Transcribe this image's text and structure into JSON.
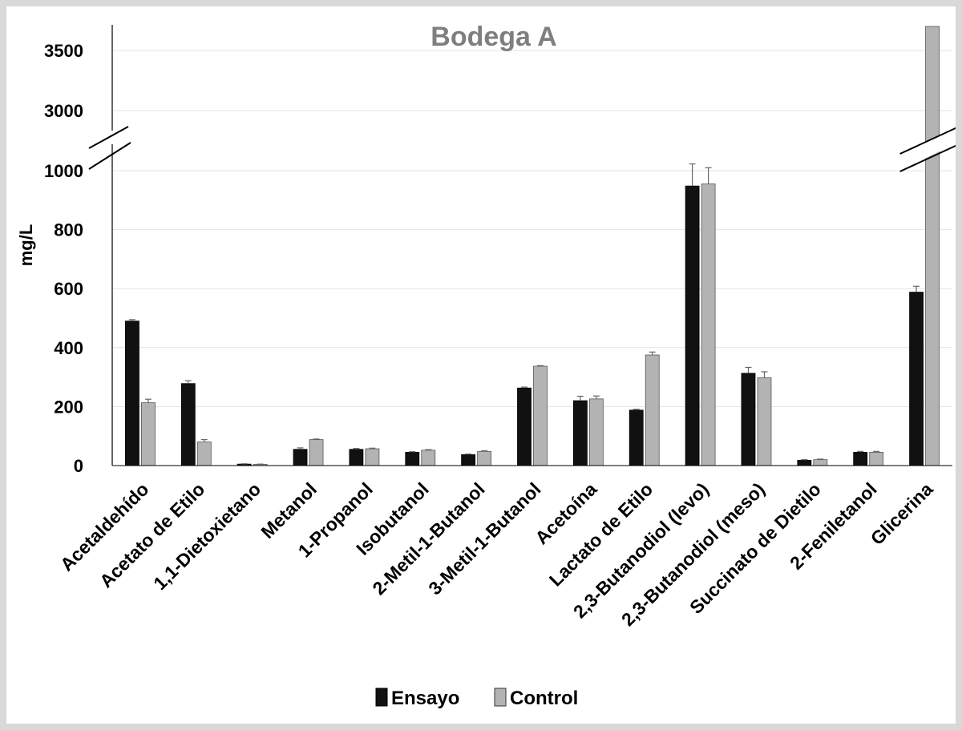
{
  "chart_data": {
    "type": "bar",
    "title": "Bodega A",
    "ylabel": "mg/L",
    "xlabel": "",
    "axis_break": {
      "lower_max": 1000,
      "upper_min": 2800,
      "upper_max": 3700
    },
    "yticks_lower": [
      0,
      200,
      400,
      600,
      800,
      1000
    ],
    "yticks_upper": [
      3000,
      3500
    ],
    "categories": [
      "Acetaldehído",
      "Acetato de Etilo",
      "1,1-Dietoxietano",
      "Metanol",
      "1-Propanol",
      "Isobutanol",
      "2-Metil-1-Butanol",
      "3-Metil-1-Butanol",
      "Acetoína",
      "Lactato de Etilo",
      "2,3-Butanodiol (levo)",
      "2,3-Butanodiol (meso)",
      "Succinato de Dietilo",
      "2-Feniletanol",
      "Glicerina"
    ],
    "series": [
      {
        "name": "Ensayo",
        "color": "#111111",
        "values": [
          490,
          278,
          5,
          55,
          55,
          45,
          37,
          263,
          220,
          188,
          948,
          313,
          18,
          45,
          588
        ],
        "errors": [
          5,
          10,
          1,
          5,
          3,
          2,
          2,
          3,
          15,
          3,
          75,
          20,
          2,
          3,
          20
        ]
      },
      {
        "name": "Control",
        "color": "#b3b3b3",
        "values": [
          213,
          80,
          4,
          88,
          57,
          52,
          48,
          337,
          226,
          375,
          955,
          298,
          20,
          45,
          3700
        ],
        "errors": [
          12,
          8,
          1,
          2,
          2,
          2,
          2,
          2,
          10,
          10,
          55,
          20,
          2,
          3,
          5
        ]
      }
    ],
    "grid": true,
    "legend_position": "bottom-center"
  }
}
